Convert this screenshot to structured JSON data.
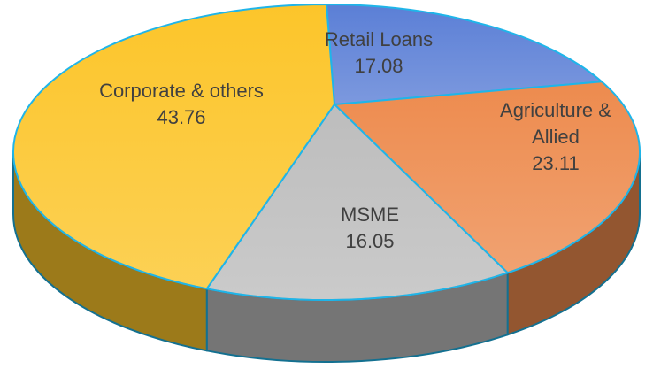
{
  "chart_data": {
    "type": "pie3d",
    "categories": [
      "Retail Loans",
      "Agriculture & Allied",
      "MSME",
      "Corporate & others"
    ],
    "values": [
      17.08,
      23.11,
      16.05,
      43.76
    ],
    "colors": [
      "#5b7fd6",
      "#ed8b4e",
      "#bdbdbd",
      "#fcc52a"
    ]
  }
}
